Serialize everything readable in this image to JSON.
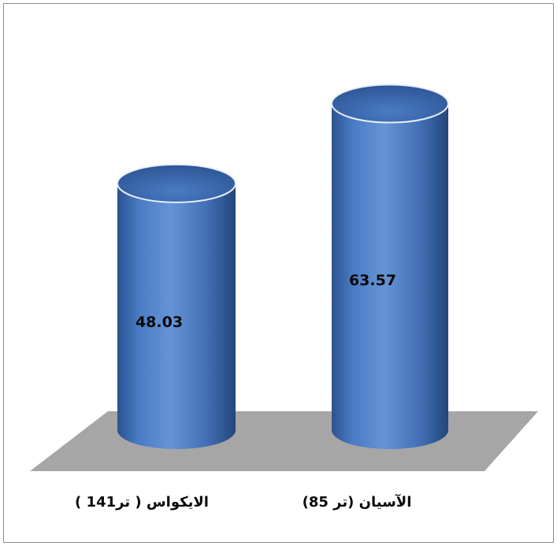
{
  "chart_data": {
    "type": "bar",
    "style": "3d-cylinder",
    "categories": [
      "الايكواس ( تر141 )",
      "الآسيان (تر 85)"
    ],
    "values": [
      48.03,
      63.57
    ],
    "value_labels": [
      "48.03",
      "63.57"
    ],
    "title": "",
    "xlabel": "",
    "ylabel": "",
    "grid": false,
    "legend": "none",
    "colors": {
      "bar": "#4a7bc4",
      "bar_dark": "#24497f",
      "bar_light": "#86abe0",
      "floor": "#a6a6a6"
    }
  }
}
